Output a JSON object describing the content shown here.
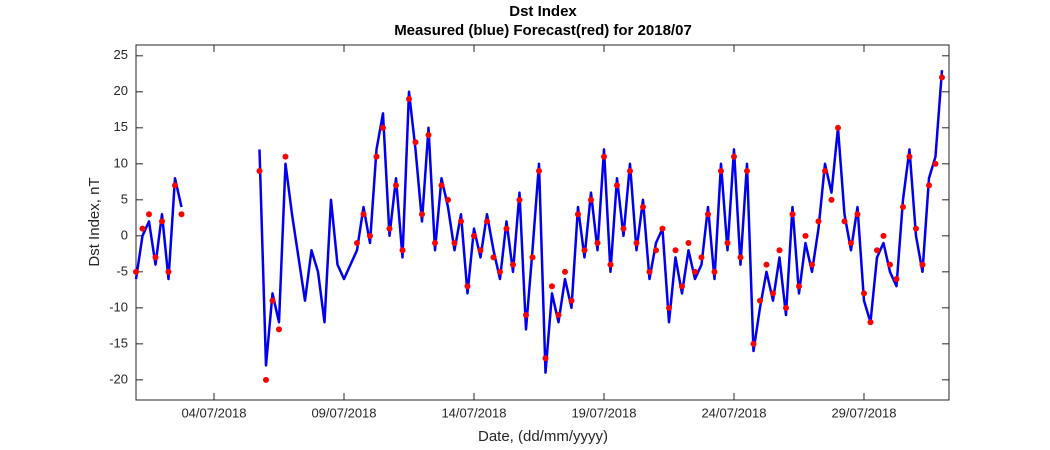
{
  "chart_data": {
    "type": "line",
    "title": "Dst Index",
    "subtitle": "Measured (blue) Forecast(red) for 2018/07",
    "x_label": "Date, (dd/mm/yyyy)",
    "y_label": "Dst Index, nT",
    "x": [
      1,
      1.25,
      1.5,
      1.75,
      2,
      2.25,
      2.5,
      2.75,
      3,
      3.25,
      3.5,
      3.75,
      4,
      4.25,
      4.5,
      4.75,
      5,
      5.25,
      5.5,
      5.75,
      6,
      6.25,
      6.5,
      6.75,
      7,
      7.25,
      7.5,
      7.75,
      8,
      8.25,
      8.5,
      8.75,
      9,
      9.25,
      9.5,
      9.75,
      10,
      10.25,
      10.5,
      10.75,
      11,
      11.25,
      11.5,
      11.75,
      12,
      12.25,
      12.5,
      12.75,
      13,
      13.25,
      13.5,
      13.75,
      14,
      14.25,
      14.5,
      14.75,
      15,
      15.25,
      15.5,
      15.75,
      16,
      16.25,
      16.5,
      16.75,
      17,
      17.25,
      17.5,
      17.75,
      18,
      18.25,
      18.5,
      18.75,
      19,
      19.25,
      19.5,
      19.75,
      20,
      20.25,
      20.5,
      20.75,
      21,
      21.25,
      21.5,
      21.75,
      22,
      22.25,
      22.5,
      22.75,
      23,
      23.25,
      23.5,
      23.75,
      24,
      24.25,
      24.5,
      24.75,
      25,
      25.25,
      25.5,
      25.75,
      26,
      26.25,
      26.5,
      26.75,
      27,
      27.25,
      27.5,
      27.75,
      28,
      28.25,
      28.5,
      28.75,
      29,
      29.25,
      29.5,
      29.75,
      30,
      30.25,
      30.5,
      30.75,
      31,
      31.25,
      31.5,
      31.75,
      32
    ],
    "series": [
      {
        "name": "Measured",
        "color": "#0000ee",
        "marker": "line",
        "values": [
          -6,
          0,
          2,
          -4,
          3,
          -6,
          8,
          4,
          null,
          null,
          null,
          null,
          null,
          null,
          null,
          null,
          null,
          null,
          null,
          12,
          -18,
          -8,
          -12,
          10,
          3,
          -3,
          -9,
          -2,
          -5,
          -12,
          5,
          -4,
          -6,
          -4,
          -2,
          4,
          -1,
          12,
          17,
          0,
          8,
          -3,
          20,
          12,
          2,
          15,
          -2,
          8,
          4,
          -2,
          3,
          -8,
          1,
          -3,
          3,
          -2,
          -6,
          2,
          -5,
          6,
          -13,
          -2,
          10,
          -19,
          -8,
          -12,
          -6,
          -10,
          4,
          -3,
          6,
          -2,
          12,
          -5,
          8,
          0,
          10,
          -2,
          5,
          -6,
          -1,
          1,
          -12,
          -3,
          -8,
          -2,
          -6,
          -4,
          4,
          -6,
          10,
          -2,
          12,
          -4,
          10,
          -16,
          -10,
          -5,
          -9,
          -3,
          -11,
          4,
          -8,
          -1,
          -5,
          1,
          10,
          6,
          15,
          3,
          -2,
          4,
          -9,
          -12,
          -3,
          -1,
          -5,
          -7,
          5,
          12,
          0,
          -5,
          8,
          11,
          23
        ]
      },
      {
        "name": "Forecast",
        "color": "#ff0000",
        "marker": "dot",
        "values": [
          -5,
          1,
          3,
          -3,
          2,
          -5,
          7,
          3,
          null,
          null,
          null,
          null,
          null,
          null,
          null,
          null,
          null,
          null,
          null,
          9,
          -20,
          -9,
          -13,
          11,
          null,
          null,
          null,
          null,
          null,
          null,
          null,
          null,
          null,
          null,
          -1,
          3,
          0,
          11,
          15,
          1,
          7,
          -2,
          19,
          13,
          3,
          14,
          -1,
          7,
          5,
          -1,
          2,
          -7,
          0,
          -2,
          2,
          -3,
          -5,
          1,
          -4,
          5,
          -11,
          -3,
          9,
          -17,
          -7,
          -11,
          -5,
          -9,
          3,
          -2,
          5,
          -1,
          11,
          -4,
          7,
          1,
          9,
          -1,
          4,
          -5,
          -2,
          1,
          -10,
          -2,
          -7,
          -1,
          -5,
          -3,
          3,
          -5,
          9,
          -1,
          11,
          -3,
          9,
          -15,
          -9,
          -4,
          -8,
          -2,
          -10,
          3,
          -7,
          0,
          -4,
          2,
          9,
          5,
          15,
          2,
          -1,
          3,
          -8,
          -12,
          -2,
          0,
          -4,
          -6,
          4,
          11,
          1,
          -4,
          7,
          10,
          22
        ]
      }
    ],
    "xlim": [
      1,
      32.27
    ],
    "xticks": [
      {
        "value": 4,
        "label": "04/07/2018"
      },
      {
        "value": 9,
        "label": "09/07/2018"
      },
      {
        "value": 14,
        "label": "14/07/2018"
      },
      {
        "value": 19,
        "label": "19/07/2018"
      },
      {
        "value": 24,
        "label": "24/07/2018"
      },
      {
        "value": 29,
        "label": "29/07/2018"
      }
    ],
    "ylim": [
      -22.8,
      26.5
    ],
    "yticks": [
      -20,
      -15,
      -10,
      -5,
      0,
      5,
      10,
      15,
      20,
      25
    ]
  }
}
